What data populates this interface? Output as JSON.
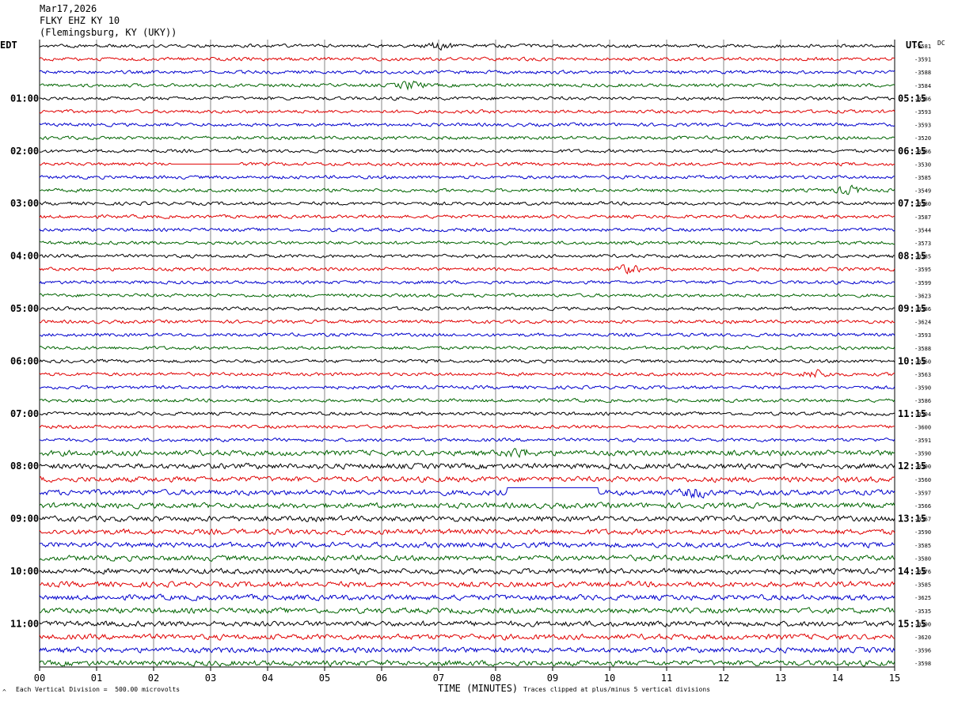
{
  "header": {
    "date": "Mar17,2026",
    "station": "FLKY EHZ KY 10",
    "location": "(Flemingsburg, KY (UKY))"
  },
  "left_timezone": "EDT",
  "right_timezone": "UTC",
  "corner_label": "DC",
  "footer": {
    "scale_note": "Each Vertical Division =  500.00 microvolts",
    "xlabel": "TIME (MINUTES)",
    "clip_note": "Traces clipped at plus/minus 5 vertical divisions"
  },
  "colors": {
    "cycle": [
      "#000000",
      "#e00000",
      "#0000cc",
      "#006400"
    ],
    "grid": "#000000"
  },
  "chart_data": {
    "type": "line",
    "title": "FLKY EHZ KY 10",
    "xlabel": "TIME (MINUTES)",
    "xlim": [
      0,
      15
    ],
    "x_ticks": [
      "00",
      "01",
      "02",
      "03",
      "04",
      "05",
      "06",
      "07",
      "08",
      "09",
      "10",
      "11",
      "12",
      "13",
      "14",
      "15"
    ],
    "minutes_per_line": 15,
    "left_hour_labels": [
      "01:00",
      "02:00",
      "03:00",
      "04:00",
      "05:00",
      "06:00",
      "07:00",
      "08:00",
      "09:00",
      "10:00",
      "11:00"
    ],
    "right_hour_labels": [
      "05:15",
      "06:15",
      "07:15",
      "08:15",
      "09:15",
      "10:15",
      "11:15",
      "12:15",
      "13:15",
      "14:15",
      "15:15"
    ],
    "trace_offsets": [
      "-3581",
      "-3591",
      "-3588",
      "-3584",
      "-3586",
      "-3593",
      "-3593",
      "-3520",
      "-3586",
      "-3530",
      "-3585",
      "-3549",
      "-3580",
      "-3587",
      "-3544",
      "-3573",
      "-3585",
      "-3595",
      "-3599",
      "-3623",
      "-3586",
      "-3624",
      "-3593",
      "-3588",
      "-3560",
      "-3563",
      "-3590",
      "-3586",
      "-3594",
      "-3600",
      "-3591",
      "-3590",
      "-3590",
      "-3560",
      "-3597",
      "-3566",
      "-3567",
      "-3590",
      "-3585",
      "-3580",
      "-3576",
      "-3585",
      "-3625",
      "-3535",
      "-3590",
      "-3620",
      "-3596",
      "-3598"
    ],
    "gaps": [
      {
        "trace": 9,
        "start_min": 2.3,
        "end_min": 3.5
      },
      {
        "trace": 34,
        "start_min": 8.2,
        "end_min": 9.8
      }
    ],
    "events": [
      {
        "trace": 0,
        "at_min": 7.0
      },
      {
        "trace": 3,
        "at_min": 6.5
      },
      {
        "trace": 11,
        "at_min": 14.2
      },
      {
        "trace": 17,
        "at_min": 10.3
      },
      {
        "trace": 25,
        "at_min": 13.6
      },
      {
        "trace": 31,
        "at_min": 8.4
      },
      {
        "trace": 34,
        "at_min": 11.5
      }
    ]
  }
}
